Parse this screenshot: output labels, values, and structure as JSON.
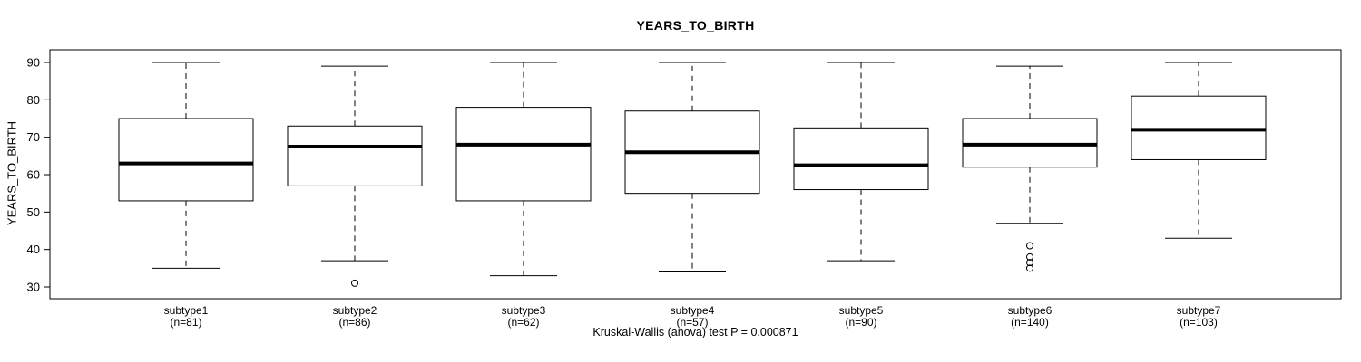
{
  "chart_data": {
    "type": "boxplot",
    "title": "YEARS_TO_BIRTH",
    "xlabel": "",
    "ylabel": "YEARS_TO_BIRTH",
    "ylim": [
      29,
      92
    ],
    "yticks": [
      30,
      40,
      50,
      60,
      70,
      80,
      90
    ],
    "grid": false,
    "footnote": "Kruskal-Wallis (anova) test P = 0.000871",
    "groups": [
      {
        "label": "subtype1",
        "n_label": "(n=81)",
        "n": 81,
        "whisker_low": 35,
        "q1": 53,
        "median": 63,
        "q3": 75,
        "whisker_high": 90,
        "outliers": []
      },
      {
        "label": "subtype2",
        "n_label": "(n=86)",
        "n": 86,
        "whisker_low": 37,
        "q1": 57,
        "median": 67.5,
        "q3": 73,
        "whisker_high": 89,
        "outliers": [
          31
        ]
      },
      {
        "label": "subtype3",
        "n_label": "(n=62)",
        "n": 62,
        "whisker_low": 33,
        "q1": 53,
        "median": 68,
        "q3": 78,
        "whisker_high": 90,
        "outliers": []
      },
      {
        "label": "subtype4",
        "n_label": "(n=57)",
        "n": 57,
        "whisker_low": 34,
        "q1": 55,
        "median": 66,
        "q3": 77,
        "whisker_high": 90,
        "outliers": []
      },
      {
        "label": "subtype5",
        "n_label": "(n=90)",
        "n": 90,
        "whisker_low": 37,
        "q1": 56,
        "median": 62.5,
        "q3": 72.5,
        "whisker_high": 90,
        "outliers": []
      },
      {
        "label": "subtype6",
        "n_label": "(n=140)",
        "n": 140,
        "whisker_low": 47,
        "q1": 62,
        "median": 68,
        "q3": 75,
        "whisker_high": 89,
        "outliers": [
          41,
          38,
          36.5,
          35
        ]
      },
      {
        "label": "subtype7",
        "n_label": "(n=103)",
        "n": 103,
        "whisker_low": 43,
        "q1": 64,
        "median": 72,
        "q3": 81,
        "whisker_high": 90,
        "outliers": []
      }
    ],
    "style": {
      "line_color": "#000000",
      "box_fill": "#ffffff",
      "background": "#ffffff"
    }
  }
}
